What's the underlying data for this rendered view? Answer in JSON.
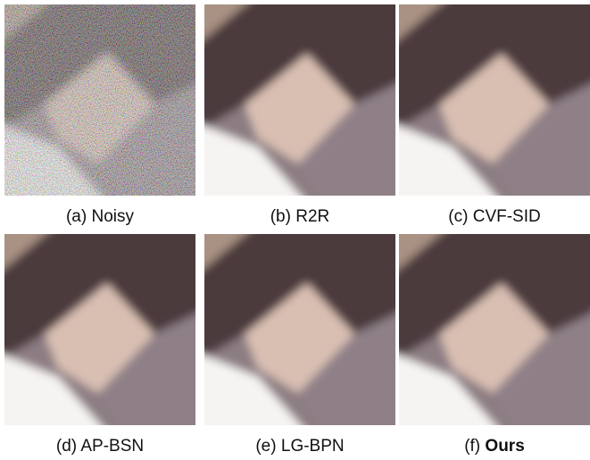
{
  "panels": [
    {
      "label": "(a)",
      "name": "Noisy"
    },
    {
      "label": "(b)",
      "name": "R2R"
    },
    {
      "label": "(c)",
      "name": "CVF-SID"
    },
    {
      "label": "(d)",
      "name": "AP-BSN"
    },
    {
      "label": "(e)",
      "name": "LG-BPN"
    },
    {
      "label": "(f)",
      "name": "Ours"
    }
  ]
}
